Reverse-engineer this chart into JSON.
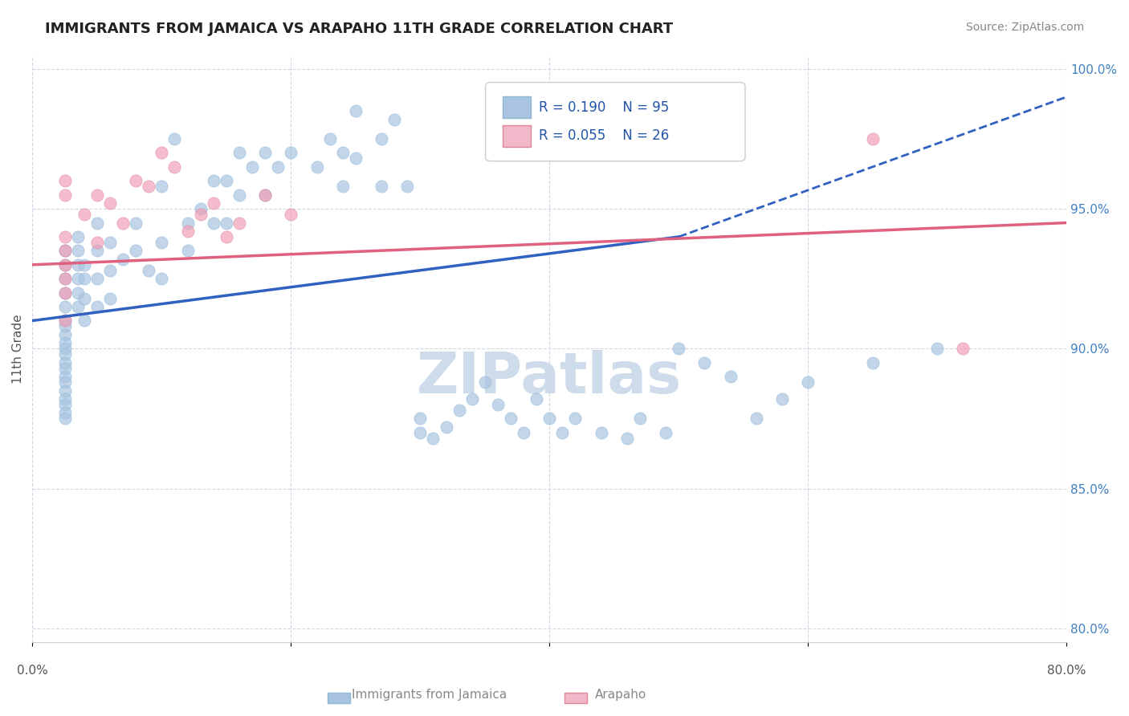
{
  "title": "IMMIGRANTS FROM JAMAICA VS ARAPAHO 11TH GRADE CORRELATION CHART",
  "source_text": "Source: ZipAtlas.com",
  "xlabel": "",
  "ylabel": "11th Grade",
  "r_blue": 0.19,
  "n_blue": 95,
  "r_pink": 0.055,
  "n_pink": 26,
  "xlim": [
    0.0,
    0.8
  ],
  "ylim": [
    0.795,
    1.005
  ],
  "yticks": [
    0.8,
    0.85,
    0.9,
    0.95,
    1.0
  ],
  "ytick_labels": [
    "80.0%",
    "85.0%",
    "90.0%",
    "95.0%",
    "100.0%"
  ],
  "xticks": [
    0.0,
    0.2,
    0.4,
    0.6,
    0.8
  ],
  "xtick_labels": [
    "0.0%",
    "",
    "",
    "",
    "80.0%"
  ],
  "blue_scatter_x": [
    0.025,
    0.025,
    0.025,
    0.025,
    0.025,
    0.025,
    0.025,
    0.025,
    0.025,
    0.025,
    0.025,
    0.025,
    0.025,
    0.025,
    0.025,
    0.025,
    0.025,
    0.025,
    0.025,
    0.025,
    0.035,
    0.035,
    0.035,
    0.035,
    0.035,
    0.035,
    0.04,
    0.04,
    0.04,
    0.04,
    0.05,
    0.05,
    0.05,
    0.05,
    0.06,
    0.06,
    0.06,
    0.07,
    0.08,
    0.08,
    0.09,
    0.1,
    0.1,
    0.1,
    0.11,
    0.12,
    0.12,
    0.13,
    0.14,
    0.14,
    0.15,
    0.15,
    0.16,
    0.16,
    0.17,
    0.18,
    0.18,
    0.19,
    0.2,
    0.22,
    0.23,
    0.24,
    0.24,
    0.25,
    0.25,
    0.27,
    0.27,
    0.28,
    0.29,
    0.3,
    0.3,
    0.31,
    0.32,
    0.33,
    0.34,
    0.35,
    0.36,
    0.37,
    0.38,
    0.39,
    0.4,
    0.41,
    0.42,
    0.44,
    0.46,
    0.47,
    0.49,
    0.5,
    0.52,
    0.54,
    0.56,
    0.58,
    0.6,
    0.65,
    0.7
  ],
  "blue_scatter_y": [
    0.935,
    0.93,
    0.925,
    0.92,
    0.915,
    0.91,
    0.908,
    0.905,
    0.902,
    0.9,
    0.898,
    0.895,
    0.893,
    0.89,
    0.888,
    0.885,
    0.882,
    0.88,
    0.877,
    0.875,
    0.94,
    0.935,
    0.93,
    0.925,
    0.92,
    0.915,
    0.93,
    0.925,
    0.918,
    0.91,
    0.945,
    0.935,
    0.925,
    0.915,
    0.938,
    0.928,
    0.918,
    0.932,
    0.945,
    0.935,
    0.928,
    0.958,
    0.938,
    0.925,
    0.975,
    0.945,
    0.935,
    0.95,
    0.96,
    0.945,
    0.96,
    0.945,
    0.97,
    0.955,
    0.965,
    0.97,
    0.955,
    0.965,
    0.97,
    0.965,
    0.975,
    0.97,
    0.958,
    0.985,
    0.968,
    0.975,
    0.958,
    0.982,
    0.958,
    0.875,
    0.87,
    0.868,
    0.872,
    0.878,
    0.882,
    0.888,
    0.88,
    0.875,
    0.87,
    0.882,
    0.875,
    0.87,
    0.875,
    0.87,
    0.868,
    0.875,
    0.87,
    0.9,
    0.895,
    0.89,
    0.875,
    0.882,
    0.888,
    0.895,
    0.9
  ],
  "pink_scatter_x": [
    0.025,
    0.025,
    0.025,
    0.025,
    0.025,
    0.025,
    0.025,
    0.025,
    0.04,
    0.05,
    0.05,
    0.06,
    0.07,
    0.08,
    0.09,
    0.1,
    0.11,
    0.12,
    0.13,
    0.14,
    0.15,
    0.16,
    0.18,
    0.2,
    0.65,
    0.72
  ],
  "pink_scatter_y": [
    0.96,
    0.955,
    0.94,
    0.935,
    0.93,
    0.925,
    0.92,
    0.91,
    0.948,
    0.955,
    0.938,
    0.952,
    0.945,
    0.96,
    0.958,
    0.97,
    0.965,
    0.942,
    0.948,
    0.952,
    0.94,
    0.945,
    0.955,
    0.948,
    0.975,
    0.9
  ],
  "blue_line_x": [
    0.0,
    0.5,
    0.8
  ],
  "blue_line_y": [
    0.91,
    0.94,
    0.99
  ],
  "pink_line_x": [
    0.0,
    0.8
  ],
  "pink_line_y": [
    0.93,
    0.945
  ],
  "blue_color": "#a8c4e0",
  "pink_color": "#f0a0b8",
  "blue_line_color": "#3060c0",
  "pink_line_color": "#e06080",
  "grid_color": "#d0d8e8",
  "watermark_color": "#c8d8e8",
  "background_color": "#ffffff",
  "legend_blue_color": "#a8c4e0",
  "legend_pink_color": "#f0b8c8"
}
